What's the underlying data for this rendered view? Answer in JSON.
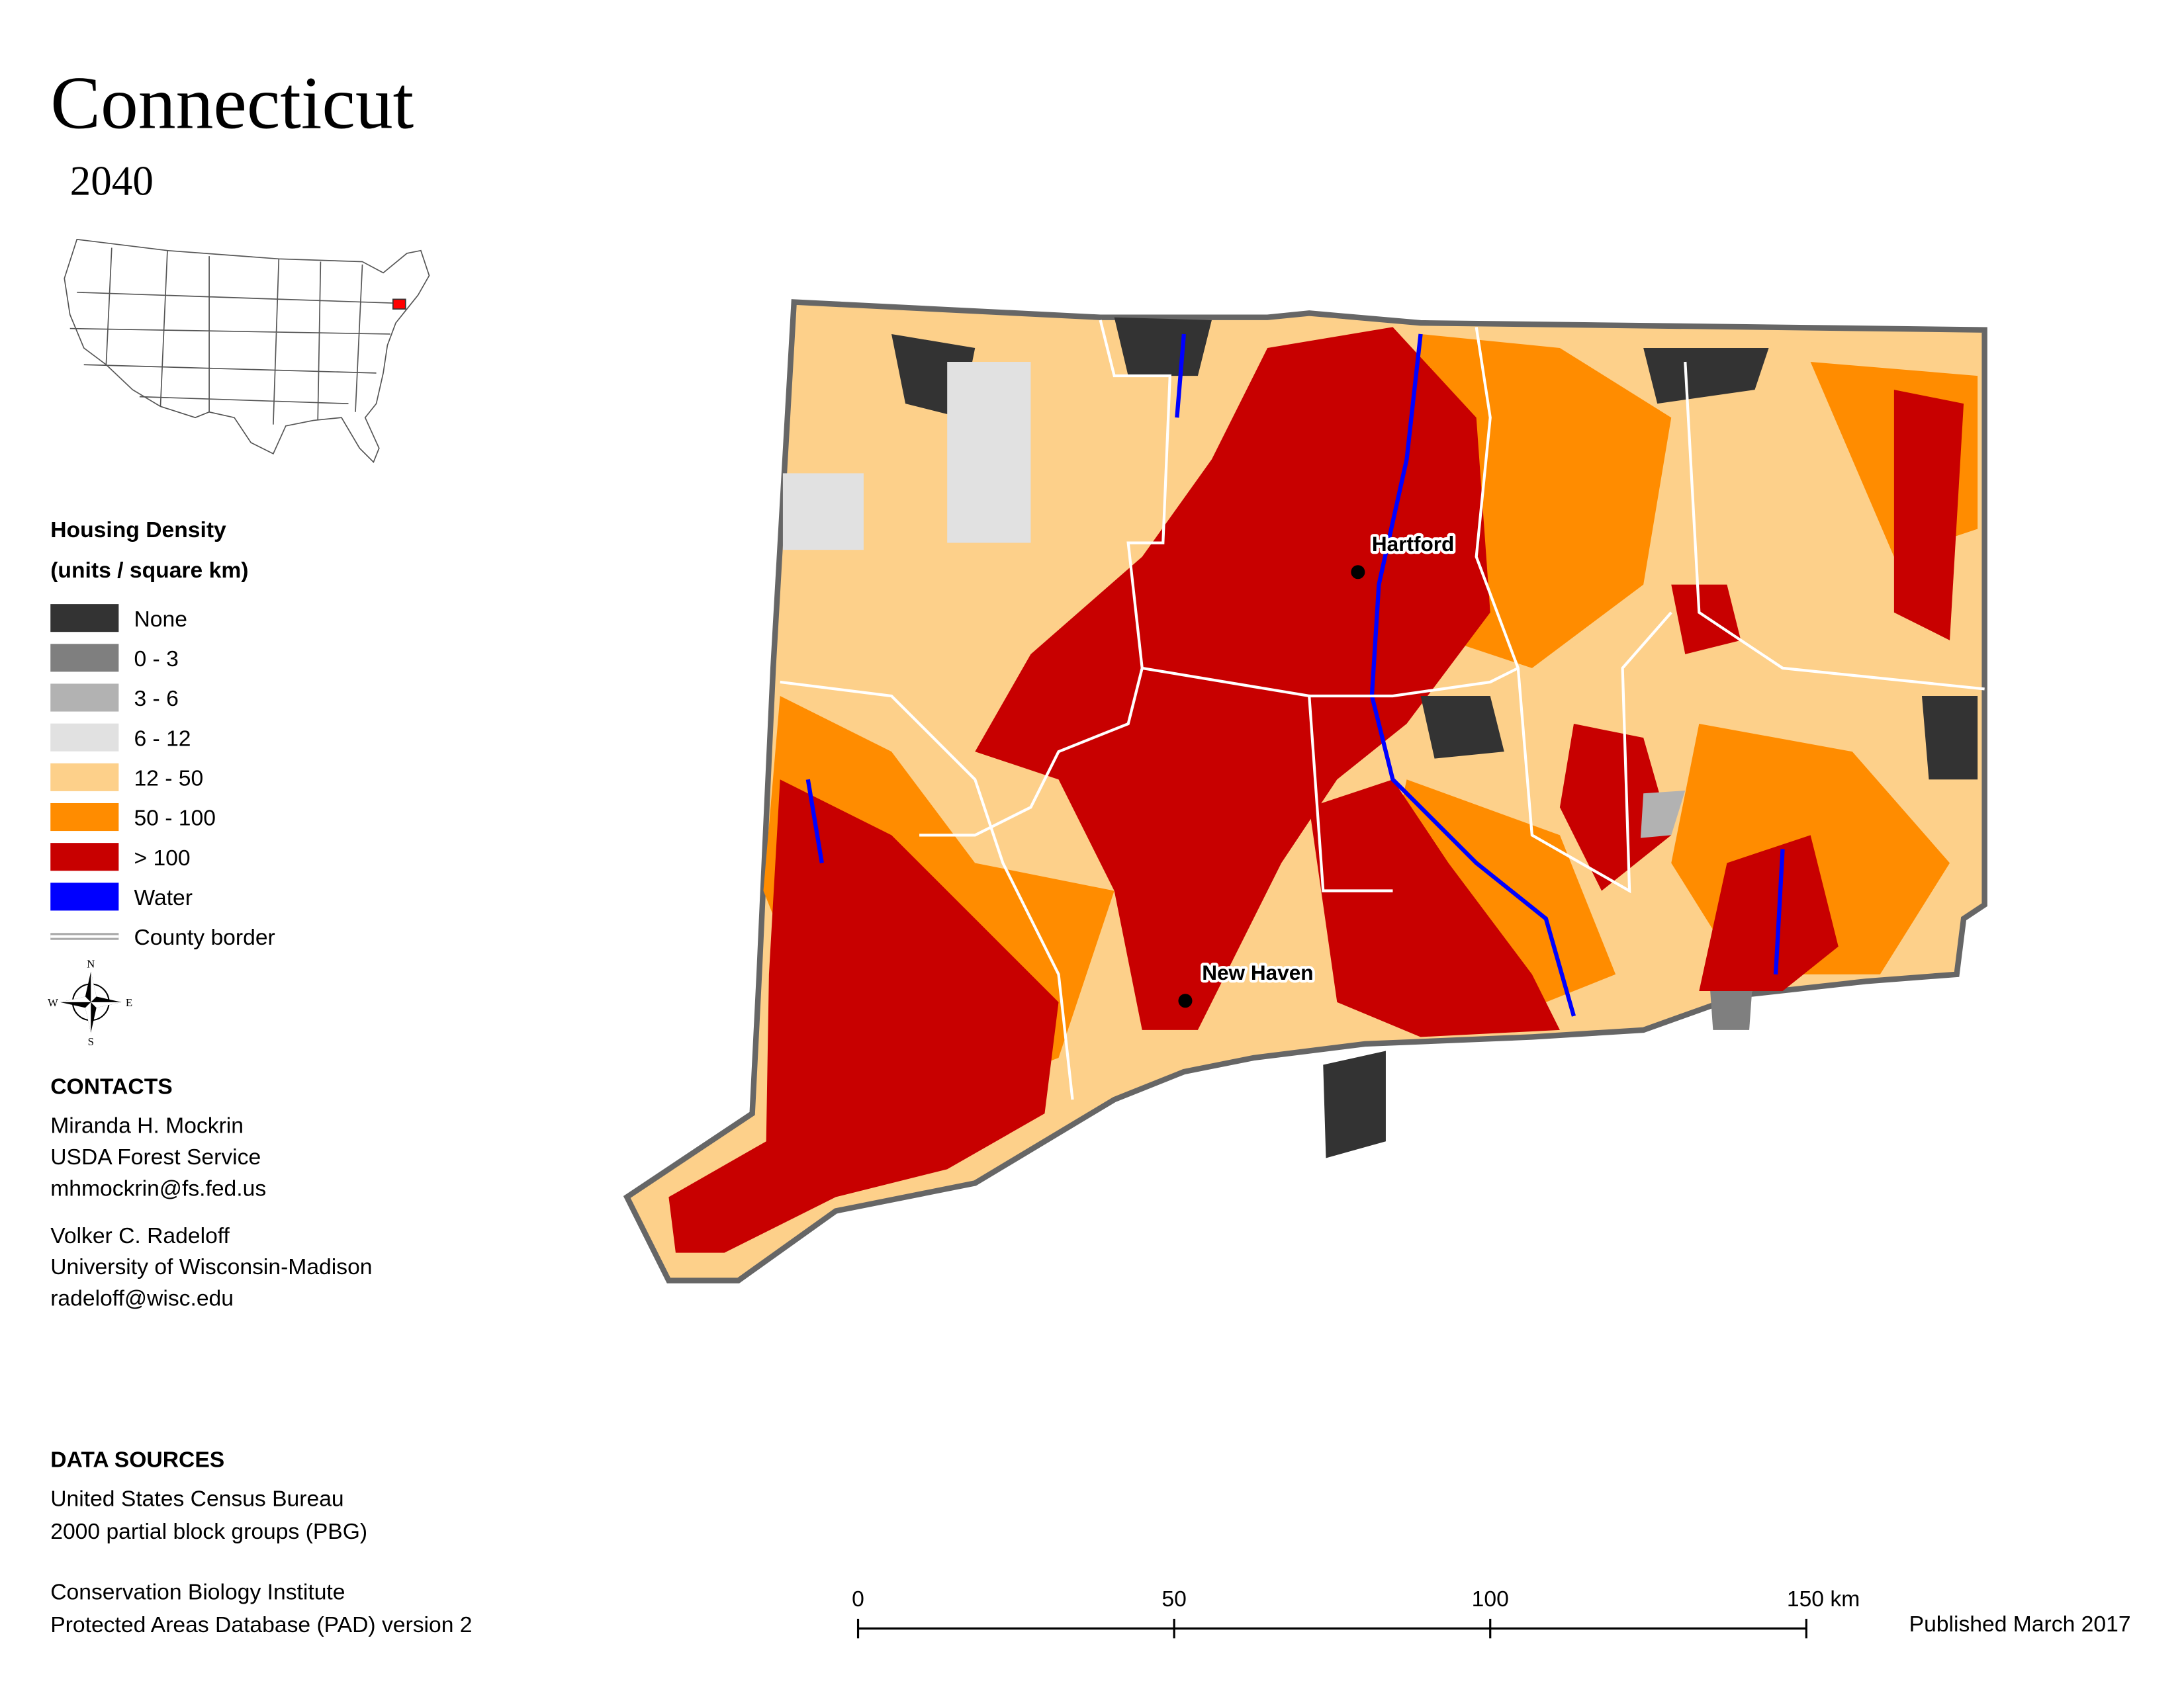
{
  "title": "Connecticut",
  "subtitle": "2040",
  "legend": {
    "title": "Housing Density",
    "units": "(units / square km)",
    "items": [
      {
        "label": "None",
        "color": "#333333"
      },
      {
        "label": "0 - 3",
        "color": "#7f7f7f"
      },
      {
        "label": "3 - 6",
        "color": "#b2b2b2"
      },
      {
        "label": "6 - 12",
        "color": "#e1e1e1"
      },
      {
        "label": "12 - 50",
        "color": "#fdd08a"
      },
      {
        "label": "50 - 100",
        "color": "#ff8c00"
      },
      {
        "label": "> 100",
        "color": "#c80000"
      },
      {
        "label": "Water",
        "color": "#0000ff"
      },
      {
        "label": "County border"
      }
    ]
  },
  "compass": [
    "N",
    "E",
    "S",
    "W"
  ],
  "cities": [
    {
      "label": "Hartford"
    },
    {
      "label": "New Haven"
    }
  ],
  "contacts": {
    "heading": "CONTACTS",
    "people": [
      [
        "Miranda H. Mockrin",
        "USDA Forest Service",
        "mhmockrin@fs.fed.us"
      ],
      [
        "Volker C. Radeloff",
        "University of Wisconsin-Madison",
        "radeloff@wisc.edu"
      ]
    ]
  },
  "data_sources": {
    "heading": "DATA SOURCES",
    "groups": [
      [
        "United States Census Bureau",
        "2000 partial block groups (PBG)"
      ],
      [
        "Conservation Biology Institute",
        "Protected Areas Database (PAD) version 2"
      ]
    ]
  },
  "scale_bar": {
    "labels": [
      "0",
      "50",
      "100",
      "150 km"
    ]
  },
  "published": "Published March 2017"
}
